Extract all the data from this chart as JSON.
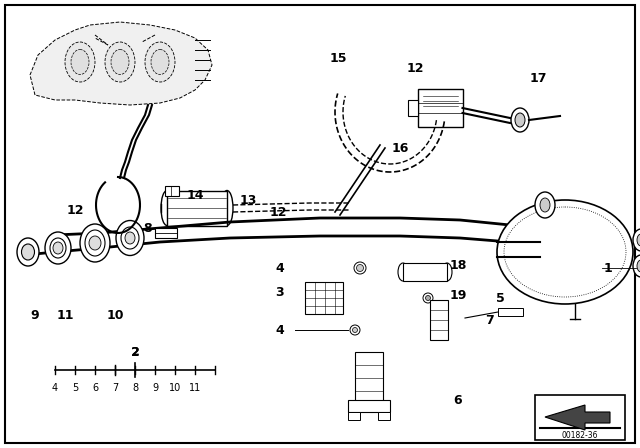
{
  "bg_color": "#ffffff",
  "line_color": "#000000",
  "fig_width": 6.4,
  "fig_height": 4.48,
  "dpi": 100,
  "legend_code": "00182-36"
}
